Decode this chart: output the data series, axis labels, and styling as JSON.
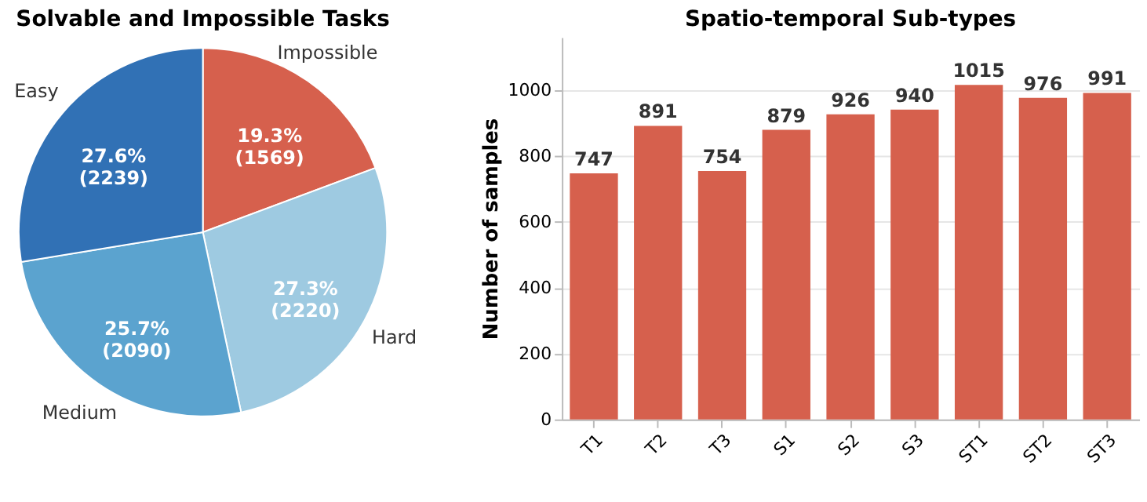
{
  "chart_data": [
    {
      "type": "pie",
      "title": "Solvable and Impossible Tasks",
      "categories": [
        "Impossible",
        "Hard",
        "Medium",
        "Easy"
      ],
      "values": [
        1569,
        2220,
        2090,
        2239
      ],
      "value_labels": [
        "19.3%\n(1569)",
        "27.3%\n(2220)",
        "25.7%\n(2090)",
        "27.6%\n(2239)"
      ],
      "colors": [
        "#d6604d",
        "#9ecae1",
        "#5ba3cf",
        "#3171b5"
      ]
    },
    {
      "type": "bar",
      "title": "Spatio-temporal Sub-types",
      "ylabel": "Number of samples",
      "categories": [
        "T1",
        "T2",
        "T3",
        "S1",
        "S2",
        "S3",
        "ST1",
        "ST2",
        "ST3"
      ],
      "values": [
        747,
        891,
        754,
        879,
        926,
        940,
        1015,
        976,
        991
      ],
      "color": "#d6604d",
      "ylim": [
        0,
        1160
      ],
      "yticks": [
        0,
        200,
        400,
        600,
        800,
        1000
      ],
      "grid": "y",
      "data_labels": true
    }
  ]
}
